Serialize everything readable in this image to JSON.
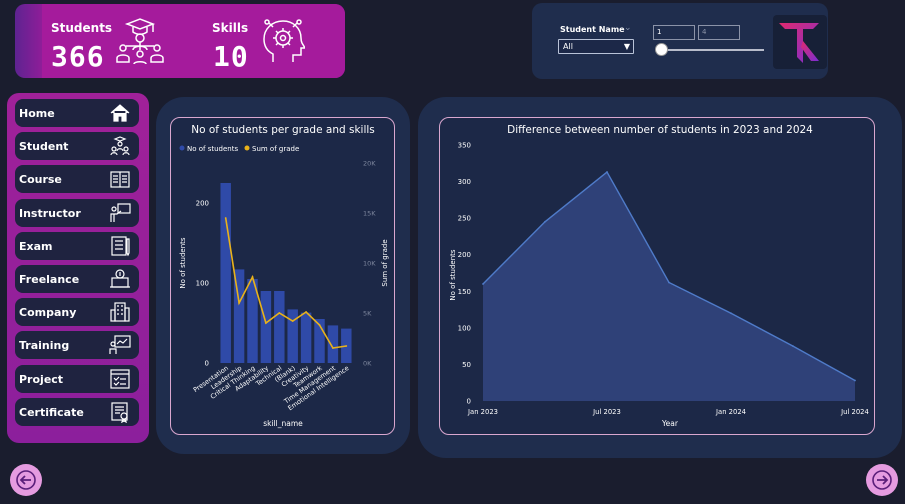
{
  "kpis": {
    "students_label": "Students",
    "students_value": "366",
    "skills_label": "Skills",
    "skills_value": "10"
  },
  "filters": {
    "student_name_label": "Student Name",
    "student_name_value": "All",
    "range_min": "1",
    "range_max": "4",
    "slider_fraction": 0
  },
  "nav": {
    "items": [
      {
        "label": "Home",
        "icon": "home-icon"
      },
      {
        "label": "Student",
        "icon": "students-icon"
      },
      {
        "label": "Course",
        "icon": "book-icon"
      },
      {
        "label": "Instructor",
        "icon": "instructor-icon"
      },
      {
        "label": "Exam",
        "icon": "exam-icon"
      },
      {
        "label": "Freelance",
        "icon": "freelance-icon"
      },
      {
        "label": "Company",
        "icon": "building-icon"
      },
      {
        "label": "Training",
        "icon": "training-icon"
      },
      {
        "label": "Project",
        "icon": "project-icon"
      },
      {
        "label": "Certificate",
        "icon": "certificate-icon"
      }
    ]
  },
  "colors": {
    "bar": "#2f4aa8",
    "line": "#e9b21a",
    "area": "#2f4178",
    "area_line": "#4f7bc9",
    "accent": "#a51b9c",
    "arrow": "#e59be0"
  },
  "chart_data": [
    {
      "type": "bar",
      "title": "No of students per grade and skills",
      "legend": [
        "No of students",
        "Sum of grade"
      ],
      "legend_position": "top-left",
      "xlabel": "skill_name",
      "ylabel": "No of students",
      "y2label": "Sum of grade",
      "categories": [
        "Presentation",
        "Leadership",
        "Critical Thinking",
        "Adaptability",
        "Technical",
        "(Blank)",
        "Creativity",
        "Teamwork",
        "Time Management",
        "Emotional Intelligence"
      ],
      "series": [
        {
          "name": "No of students",
          "type": "bar",
          "axis": "left",
          "values": [
            225,
            117,
            105,
            90,
            90,
            67,
            63,
            55,
            47,
            43
          ]
        },
        {
          "name": "Sum of grade",
          "type": "line",
          "axis": "right",
          "values": [
            14500,
            6000,
            8600,
            4000,
            5000,
            4200,
            5100,
            3800,
            1500,
            1700
          ]
        }
      ],
      "yticks": [
        "0",
        "100",
        "200"
      ],
      "ylim": [
        0,
        250
      ],
      "y2ticks": [
        "0K",
        "5K",
        "10K",
        "15K",
        "20K"
      ],
      "y2lim": [
        0,
        20000
      ],
      "grid": false
    },
    {
      "type": "area",
      "title": "Difference between number of students in 2023 and 2024",
      "xlabel": "Year",
      "ylabel": "No of students",
      "x": [
        "2023-01",
        "2023-04",
        "2023-07",
        "2023-10",
        "2024-01",
        "2024-04",
        "2024-07"
      ],
      "values": [
        160,
        245,
        313,
        162,
        120,
        75,
        28
      ],
      "xticks": [
        "Jan 2023",
        "Jul 2023",
        "Jan 2024",
        "Jul 2024"
      ],
      "yticks": [
        "0",
        "50",
        "100",
        "150",
        "200",
        "250",
        "300",
        "350"
      ],
      "ylim": [
        0,
        350
      ],
      "grid": false
    }
  ]
}
